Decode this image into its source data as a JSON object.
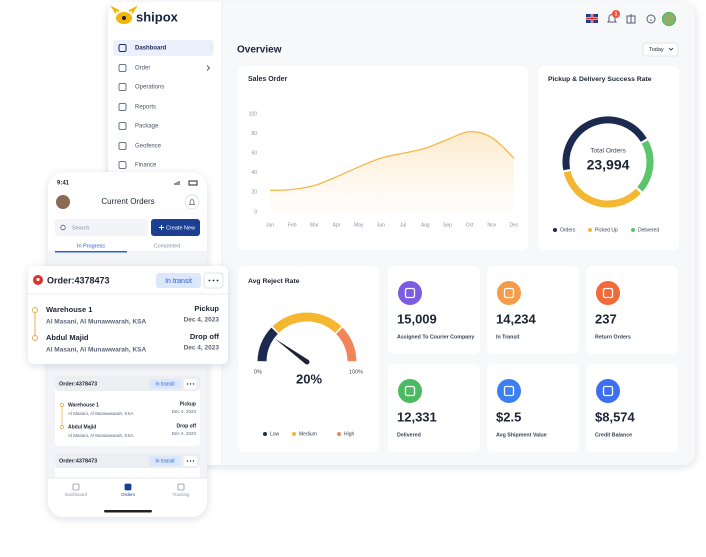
{
  "brand": "shipox",
  "sidebar": {
    "items": [
      "Dashboard",
      "Order",
      "Operations",
      "Reports",
      "Package",
      "Geofence",
      "Finance"
    ]
  },
  "header": {
    "notification_count": "1"
  },
  "overview": {
    "title": "Overview",
    "filter": "Today"
  },
  "chart_data": [
    {
      "type": "line",
      "title": "Sales Order",
      "categories": [
        "Jan",
        "Feb",
        "Mar",
        "Apr",
        "May",
        "Jun",
        "Jul",
        "Aug",
        "Sep",
        "Oct",
        "Nov",
        "Dec"
      ],
      "values": [
        22,
        23,
        27,
        36,
        46,
        55,
        60,
        65,
        74,
        82,
        76,
        55
      ],
      "color": "#f5b74a",
      "ylim": [
        0,
        100
      ],
      "yticks": [
        0,
        20,
        40,
        60,
        80,
        100
      ],
      "grid": false
    },
    {
      "type": "donut",
      "title": "Pickup & Delivery Success Rate",
      "categories": [
        "Orders",
        "Picked Up",
        "Delivered"
      ],
      "values": [
        45,
        35,
        20
      ],
      "colors": [
        "#1b2a4e",
        "#f5b731",
        "#5cc46a"
      ],
      "center_title": "Total Orders",
      "center_value": "23,994"
    },
    {
      "type": "gauge",
      "title": "Avg Reject Rate",
      "categories": [
        "Low",
        "Medium",
        "High"
      ],
      "values": [
        25,
        50,
        25
      ],
      "colors": [
        "#1b2a4e",
        "#f5b731",
        "#f0855a"
      ],
      "ylim": [
        0,
        100
      ],
      "yticks": [
        {
          "value": 0,
          "label": "0%"
        },
        {
          "value": 100,
          "label": "100%"
        }
      ],
      "value": 20,
      "value_label": "20%"
    }
  ],
  "stats": [
    {
      "value": "15,009",
      "label": "Assigned To Courier Company",
      "color": "#7c5ce0"
    },
    {
      "value": "14,234",
      "label": "In Transit",
      "color": "#f39c4b"
    },
    {
      "value": "237",
      "label": "Return Orders",
      "color": "#f06a3a"
    },
    {
      "value": "12,331",
      "label": "Delivered",
      "color": "#4cb963"
    },
    {
      "value": "$2.5",
      "label": "Avg Shipment Value",
      "color": "#3d7ef0"
    },
    {
      "value": "$8,574",
      "label": "Credit Balance",
      "color": "#3d6ff0"
    }
  ],
  "mobile": {
    "time": "9:41",
    "title": "Current Orders",
    "search": "Search",
    "create_button": "Create New",
    "tabs": [
      "In Progress",
      "Completed"
    ],
    "nav": [
      "Dashboard",
      "Orders",
      "Tracking"
    ]
  },
  "orders": [
    {
      "id": "Order:4378473",
      "status": "In transit",
      "stops": [
        {
          "name": "Warehouse 1",
          "address": "Al Masani, Al Munawwarah, KSA",
          "type": "Pickup",
          "date": "Dec 4, 2023"
        },
        {
          "name": "Abdul Majid",
          "address": "Al Masani, Al Munawwarah, KSA",
          "type": "Drop off",
          "date": "Dec 4, 2023"
        }
      ]
    },
    {
      "id": "Order:4378473",
      "status": "In transit",
      "stops": [
        {
          "name": "Warehouse 1",
          "address": "Al Masani, Al Munawwarah, KSA",
          "type": "Pickup",
          "date": "Dec 4, 2023"
        },
        {
          "name": "Abdul Majid",
          "address": "Al Masani, Al Munawwarah, KSA",
          "type": "Drop off",
          "date": "Dec 4, 2023"
        }
      ]
    },
    {
      "id": "Order:4378473",
      "status": "In transit"
    }
  ]
}
